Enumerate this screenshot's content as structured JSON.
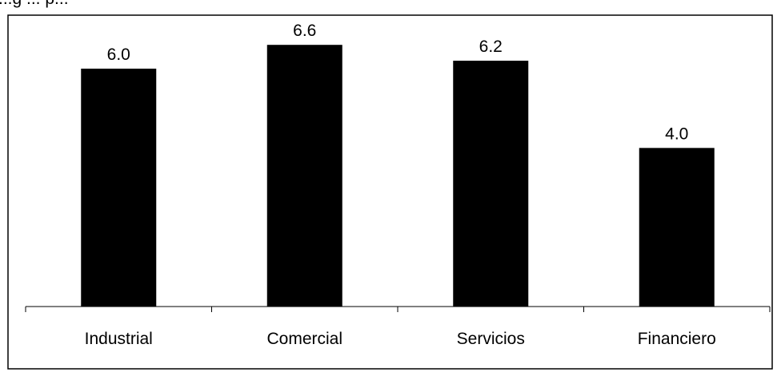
{
  "header": {
    "clipped_text": "...g ... p..."
  },
  "chart_data": {
    "type": "bar",
    "categories": [
      "Industrial",
      "Comercial",
      "Servicios",
      "Financiero"
    ],
    "values": [
      6.0,
      6.6,
      6.2,
      4.0
    ],
    "value_labels": [
      "6.0",
      "6.6",
      "6.2",
      "4.0"
    ],
    "title": "",
    "xlabel": "",
    "ylabel": "",
    "ylim": [
      0,
      7.5
    ],
    "grid": false,
    "legend": "none",
    "bar_color": "#000000"
  }
}
